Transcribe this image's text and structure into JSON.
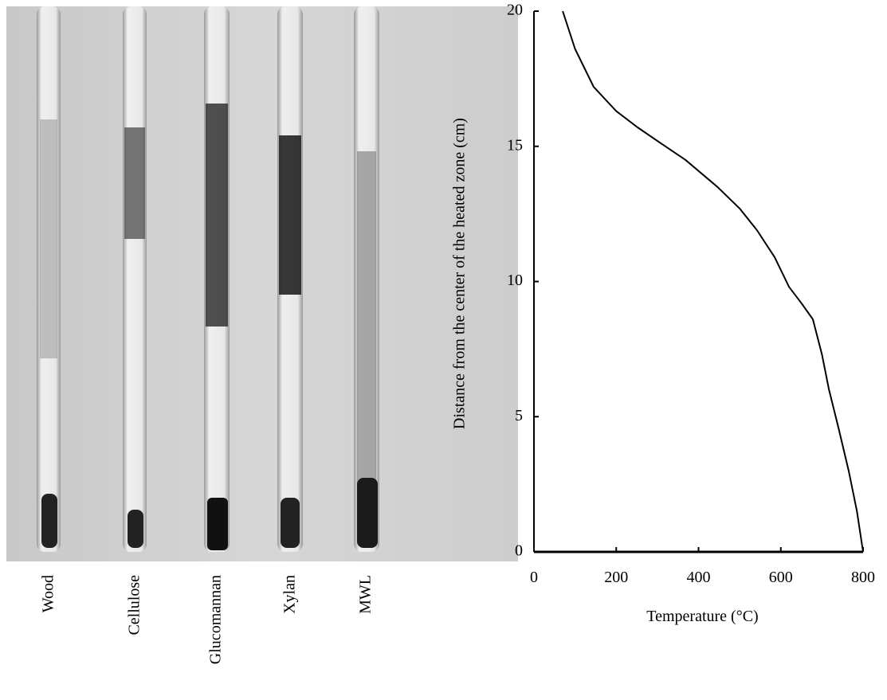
{
  "photo": {
    "labels": [
      "Wood",
      "Cellulose",
      "Glucomannan",
      "Xylan",
      "MWL"
    ]
  },
  "chart_data": {
    "type": "line",
    "x_label": "Temperature (°C)",
    "y_label": "Distance from the center of the heated zone (cm)",
    "x": [
      70,
      100,
      145,
      200,
      252,
      310,
      368,
      446,
      500,
      542,
      585,
      620,
      650,
      678,
      700,
      717,
      740,
      765,
      785,
      800
    ],
    "values": [
      20,
      18.6,
      17.2,
      16.3,
      15.7,
      15.1,
      14.5,
      13.5,
      12.7,
      11.9,
      10.9,
      9.8,
      9.2,
      8.6,
      7.3,
      6.0,
      4.6,
      3.0,
      1.5,
      0
    ],
    "color": "#000000",
    "xlim": [
      0,
      800
    ],
    "xticks": [
      0,
      200,
      400,
      600,
      800
    ],
    "ylim": [
      0,
      20
    ],
    "yticks": [
      0,
      5,
      10,
      15,
      20
    ]
  }
}
